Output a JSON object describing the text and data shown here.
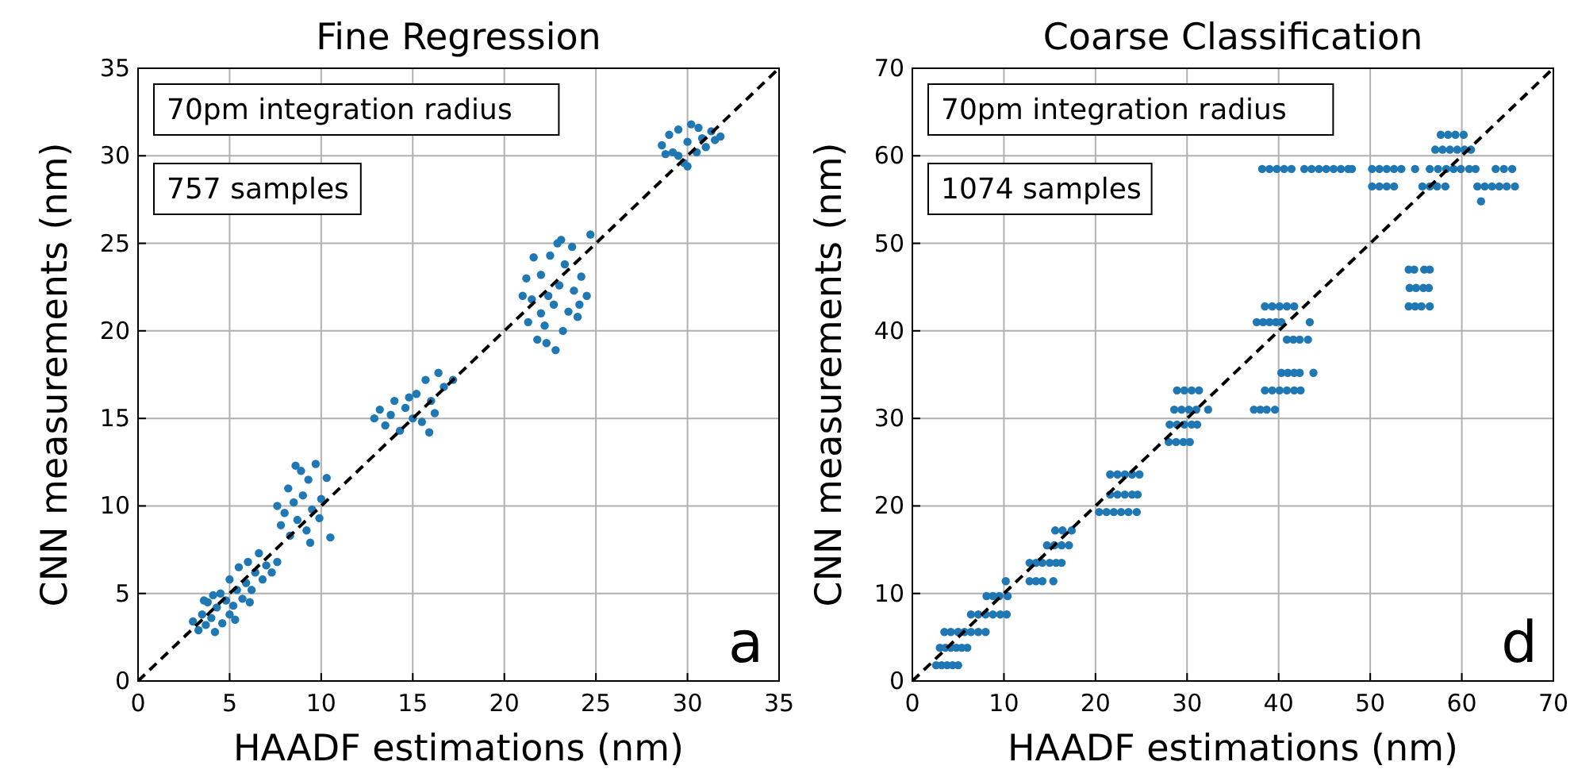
{
  "chart_data": [
    {
      "type": "scatter",
      "title": "Fine Regression",
      "xlabel": "HAADF estimations (nm)",
      "ylabel": "CNN measurements (nm)",
      "xlim": [
        0,
        35
      ],
      "ylim": [
        0,
        35
      ],
      "xticks": [
        0,
        5,
        10,
        15,
        20,
        25,
        30,
        35
      ],
      "yticks": [
        0,
        5,
        10,
        15,
        20,
        25,
        30,
        35
      ],
      "grid": true,
      "marker": "circle",
      "annotations": [
        "70pm integration radius",
        "757 samples",
        "a"
      ],
      "series": [
        {
          "color": "#1f77b4",
          "x": [
            28.6,
            29,
            29.2,
            29.5,
            29.8,
            30,
            30.2,
            30.5,
            30.8,
            31,
            31.3,
            31.5,
            29.5,
            30,
            31.8,
            30.6,
            28.8,
            21,
            21.3,
            21.5,
            21.8,
            22,
            22,
            22.2,
            22.4,
            22.5,
            22.7,
            22.9,
            23,
            23.2,
            23.3,
            23.5,
            23.7,
            23.8,
            24,
            24.2,
            24.5,
            24.7,
            21.6,
            22.3,
            23.1,
            24.1,
            21.2,
            22.8,
            12.9,
            13.2,
            13.5,
            13.8,
            14,
            14.3,
            14.6,
            15,
            15.2,
            15.5,
            15.7,
            16,
            16.2,
            16.4,
            16.7,
            17.2,
            15.9,
            14.8,
            7.6,
            7.8,
            8,
            8.2,
            8.3,
            8.5,
            8.7,
            8.9,
            9,
            9.2,
            9.3,
            9.5,
            9.7,
            9.9,
            10,
            10.3,
            10.5,
            9.4,
            8.6,
            3,
            3.3,
            3.5,
            3.7,
            3.8,
            4,
            4.2,
            4.3,
            4.5,
            4.6,
            4.8,
            5,
            5,
            5.2,
            5.4,
            5.5,
            5.7,
            5.9,
            6,
            6.2,
            6.4,
            6.6,
            6.8,
            7,
            7.3,
            7.6,
            6.1,
            4.1,
            3.6,
            5.3
          ],
          "values": [
            30.6,
            31.2,
            30.2,
            31.5,
            29.6,
            30.8,
            31.8,
            30.2,
            31,
            30.5,
            31.4,
            30.9,
            30,
            29.4,
            31.1,
            31.6,
            30.1,
            22,
            20.5,
            21.8,
            19.5,
            21,
            23.2,
            20.3,
            22,
            24.3,
            21.5,
            25,
            22.6,
            20,
            23.8,
            21.1,
            24.8,
            22.3,
            20.8,
            23.1,
            22,
            25.5,
            24.2,
            19.3,
            25.2,
            21.5,
            23,
            18.9,
            15,
            15.5,
            14.6,
            15.2,
            16,
            14.3,
            15.6,
            15,
            16.4,
            14.8,
            17.2,
            16,
            15.3,
            17.6,
            16.8,
            17.2,
            14.2,
            16.2,
            10,
            8.9,
            9.6,
            11,
            8.3,
            10.2,
            9.2,
            12,
            10.6,
            8.6,
            11.5,
            9.8,
            12.4,
            9.3,
            10.4,
            11.6,
            8.2,
            7.9,
            12.3,
            3.4,
            2.9,
            3.8,
            3.2,
            4.5,
            3.6,
            2.8,
            4.2,
            5,
            3.3,
            4.6,
            3.8,
            5.8,
            4.3,
            5.2,
            6.5,
            4.7,
            5.6,
            6.8,
            5.2,
            6.2,
            7.3,
            5.8,
            6.6,
            6.2,
            6.8,
            4.5,
            4.9,
            4.6,
            3.5
          ]
        },
        {
          "type": "line",
          "color": "#000000",
          "line_style": "dashed",
          "marker": "none",
          "x": [
            0,
            35
          ],
          "values": [
            0,
            35
          ]
        }
      ]
    },
    {
      "type": "scatter",
      "title": "Coarse Classification",
      "xlabel": "HAADF estimations (nm)",
      "ylabel": "CNN measurements (nm)",
      "xlim": [
        0,
        70
      ],
      "ylim": [
        0,
        70
      ],
      "xticks": [
        0,
        10,
        20,
        30,
        40,
        50,
        60,
        70
      ],
      "yticks": [
        0,
        10,
        20,
        30,
        40,
        50,
        60,
        70
      ],
      "grid": true,
      "marker": "circle",
      "annotations": [
        "70pm integration radius",
        "1074 samples",
        "d"
      ],
      "series": [
        {
          "color": "#1f77b4",
          "x": [
            2.6,
            3.2,
            3.8,
            4.4,
            5,
            3,
            3.6,
            4.2,
            4.8,
            5.4,
            6,
            3.5,
            4.2,
            5,
            5.7,
            6.4,
            7.2,
            8,
            6.4,
            7.2,
            8,
            8.8,
            9.6,
            10.3,
            8.1,
            8.8,
            9.5,
            10.4,
            10.2,
            12.8,
            13.5,
            14.2,
            15.4,
            12.8,
            13.5,
            14.2,
            15,
            15.7,
            16.3,
            14.7,
            15.5,
            16.3,
            17.1,
            15.6,
            16.4,
            17.4,
            20.4,
            21.2,
            22,
            22.8,
            23.6,
            24.5,
            21.6,
            22.4,
            23.2,
            24,
            24.6,
            21.6,
            22.4,
            23.2,
            24,
            24.8,
            28,
            28.8,
            29.6,
            30.3,
            28.1,
            28.9,
            29.7,
            30.5,
            31.1,
            28.6,
            29.4,
            30.2,
            31,
            32.3,
            37.3,
            38,
            38.7,
            39.6,
            28.9,
            29.7,
            30.5,
            31.3,
            38.5,
            39.3,
            40.1,
            40.9,
            41.7,
            42.4,
            40.3,
            41,
            41.7,
            42.3,
            43.8,
            40.9,
            41.6,
            42.3,
            43.2,
            37.6,
            38.3,
            39,
            39.7,
            40.3,
            43.4,
            38.5,
            39.3,
            40.1,
            40.9,
            41.7,
            54.2,
            54.9,
            55.6,
            56.5,
            54.3,
            55,
            55.8,
            56.4,
            54.2,
            54.8,
            55.9,
            56.5,
            62.1,
            50.2,
            51,
            51.8,
            52.6,
            55.7,
            56.5,
            57.3,
            58.2,
            61.7,
            62.5,
            63.3,
            64.1,
            64.9,
            65.8,
            38.2,
            39,
            39.8,
            40.6,
            41.4,
            42.8,
            43.6,
            44.4,
            45.2,
            46,
            46.8,
            47.6,
            48,
            50.2,
            51,
            51.8,
            52.6,
            53.4,
            54.9,
            56.5,
            57.4,
            58.3,
            59.1,
            59.9,
            60.8,
            61.5,
            63.7,
            64.6,
            65.5,
            57.1,
            57.9,
            58.7,
            59.5,
            60.3,
            61,
            57.7,
            58.5,
            59.3,
            60.2
          ],
          "values": [
            1.8,
            1.8,
            1.8,
            1.8,
            1.8,
            3.8,
            3.8,
            3.8,
            3.8,
            3.8,
            3.8,
            5.6,
            5.6,
            5.6,
            5.6,
            5.6,
            5.6,
            5.6,
            7.6,
            7.6,
            7.6,
            7.6,
            7.6,
            7.6,
            9.7,
            9.7,
            9.7,
            9.7,
            11.4,
            11.4,
            11.4,
            11.4,
            11.4,
            13.5,
            13.5,
            13.5,
            13.5,
            13.5,
            13.5,
            15.5,
            15.5,
            15.5,
            15.5,
            17.2,
            17.2,
            17.2,
            19.3,
            19.3,
            19.3,
            19.3,
            19.3,
            19.3,
            21.3,
            21.3,
            21.3,
            21.3,
            21.3,
            23.6,
            23.6,
            23.6,
            23.6,
            23.6,
            27.3,
            27.3,
            27.3,
            27.3,
            29.3,
            29.3,
            29.3,
            29.3,
            29.3,
            31,
            31,
            31,
            31,
            31,
            31,
            31,
            31,
            31,
            33.2,
            33.2,
            33.2,
            33.2,
            33.2,
            33.2,
            33.2,
            33.2,
            33.2,
            33.2,
            35.2,
            35.2,
            35.2,
            35.2,
            35.2,
            39,
            39,
            39,
            39,
            41,
            41,
            41,
            41,
            41,
            41,
            42.8,
            42.8,
            42.8,
            42.8,
            42.8,
            42.8,
            42.8,
            42.8,
            42.8,
            44.9,
            44.9,
            44.9,
            44.9,
            47,
            47,
            47,
            47,
            54.8,
            56.5,
            56.5,
            56.5,
            56.5,
            56.5,
            56.5,
            56.5,
            56.5,
            56.5,
            56.5,
            56.5,
            56.5,
            56.5,
            56.5,
            58.5,
            58.5,
            58.5,
            58.5,
            58.5,
            58.5,
            58.5,
            58.5,
            58.5,
            58.5,
            58.5,
            58.5,
            58.5,
            58.5,
            58.5,
            58.5,
            58.5,
            58.5,
            58.5,
            58.5,
            58.5,
            58.5,
            58.5,
            58.5,
            58.5,
            58.5,
            58.5,
            58.5,
            58.5,
            60.7,
            60.7,
            60.7,
            60.7,
            60.7,
            60.7,
            62.4,
            62.4,
            62.4,
            62.4
          ]
        },
        {
          "type": "line",
          "color": "#000000",
          "line_style": "dashed",
          "marker": "none",
          "x": [
            0,
            70
          ],
          "values": [
            0,
            70
          ]
        }
      ]
    }
  ]
}
